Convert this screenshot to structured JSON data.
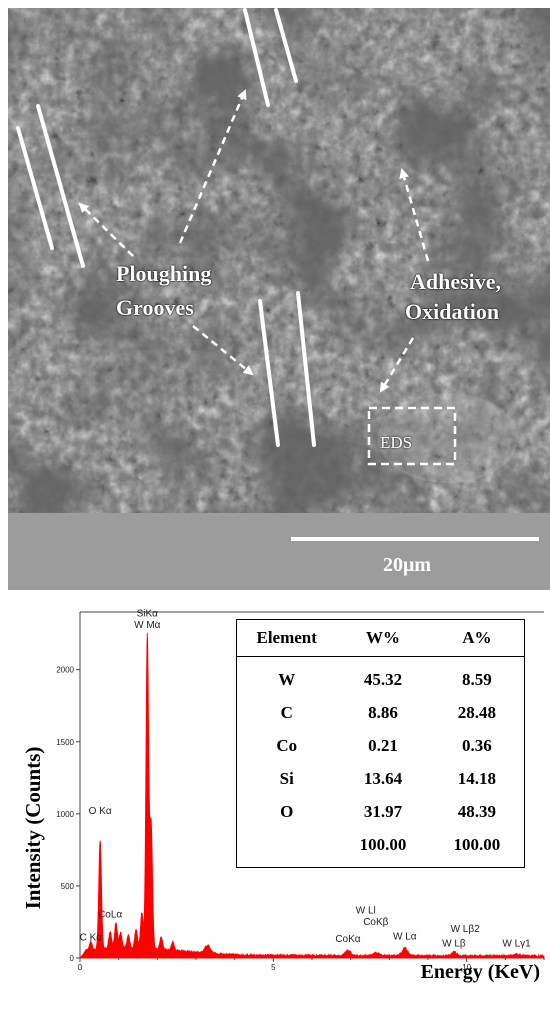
{
  "sem": {
    "labels": {
      "ploughing": "Ploughing",
      "grooves": "Grooves",
      "adhesive": "Adhesive,",
      "oxidation": "Oxidation",
      "eds_box": "EDS"
    },
    "scale_bar_label": "20μm"
  },
  "table": {
    "headers": [
      "Element",
      "W%",
      "A%"
    ],
    "rows": [
      {
        "element": "W",
        "w": "45.32",
        "a": "8.59"
      },
      {
        "element": "C",
        "w": "8.86",
        "a": "28.48"
      },
      {
        "element": "Co",
        "w": "0.21",
        "a": "0.36"
      },
      {
        "element": "Si",
        "w": "13.64",
        "a": "14.18"
      },
      {
        "element": "O",
        "w": "31.97",
        "a": "48.39"
      },
      {
        "element": "",
        "w": "100.00",
        "a": "100.00"
      }
    ]
  },
  "chart_data": {
    "type": "line",
    "xlabel": "Energy (KeV)",
    "ylabel": "Intensity (Counts)",
    "xlim": [
      0,
      12
    ],
    "ylim": [
      0,
      2400
    ],
    "xticks": [
      0,
      5,
      10
    ],
    "yticks": [
      0,
      500,
      1000,
      1500,
      2000
    ],
    "line_color": "#ff0000",
    "peaks": [
      {
        "energy": 0.28,
        "counts": 60
      },
      {
        "energy": 0.52,
        "counts": 760
      },
      {
        "energy": 0.78,
        "counts": 120
      },
      {
        "energy": 0.93,
        "counts": 180
      },
      {
        "energy": 1.05,
        "counts": 110
      },
      {
        "energy": 1.25,
        "counts": 90
      },
      {
        "energy": 1.45,
        "counts": 130
      },
      {
        "energy": 1.6,
        "counts": 250
      },
      {
        "energy": 1.74,
        "counts": 2180
      },
      {
        "energy": 1.84,
        "counts": 860
      },
      {
        "energy": 2.1,
        "counts": 90
      },
      {
        "energy": 2.4,
        "counts": 60
      },
      {
        "energy": 3.3,
        "counts": 55
      },
      {
        "energy": 6.93,
        "counts": 35
      },
      {
        "energy": 7.65,
        "counts": 20
      },
      {
        "energy": 8.4,
        "counts": 50
      },
      {
        "energy": 9.67,
        "counts": 25
      },
      {
        "energy": 11.29,
        "counts": 12
      }
    ],
    "annotations": [
      {
        "text": "SiKα",
        "energy": 1.74,
        "counts": 2370
      },
      {
        "text": "W Mα",
        "energy": 1.74,
        "counts": 2290
      },
      {
        "text": "O Kα",
        "energy": 0.52,
        "counts": 1000
      },
      {
        "text": "CoLα",
        "energy": 0.78,
        "counts": 280
      },
      {
        "text": "C Kα",
        "energy": 0.28,
        "counts": 120
      },
      {
        "text": "W Ll",
        "energy": 7.39,
        "counts": 310
      },
      {
        "text": "CoKβ",
        "energy": 7.65,
        "counts": 230
      },
      {
        "text": "CoKα",
        "energy": 6.93,
        "counts": 110
      },
      {
        "text": "W Lα",
        "energy": 8.4,
        "counts": 130
      },
      {
        "text": "W Lβ2",
        "energy": 9.96,
        "counts": 180
      },
      {
        "text": "W Lβ",
        "energy": 9.67,
        "counts": 80
      },
      {
        "text": "W Lγ1",
        "energy": 11.29,
        "counts": 80
      }
    ]
  }
}
